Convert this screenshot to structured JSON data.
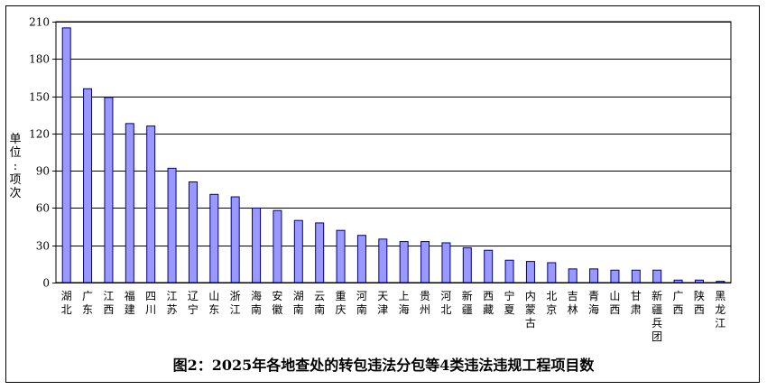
{
  "chart_data": {
    "type": "bar",
    "title": "图2：2025年各地查处的转包违法分包等4类违法违规工程项目数",
    "ylabel": "单位：项次",
    "ylim": [
      0,
      210
    ],
    "yticks": [
      0,
      30,
      60,
      90,
      120,
      150,
      180,
      210
    ],
    "grid": true,
    "categories": [
      "湖北",
      "广东",
      "江西",
      "福建",
      "四川",
      "江苏",
      "辽宁",
      "山东",
      "浙江",
      "海南",
      "安徽",
      "湖南",
      "云南",
      "重庆",
      "河南",
      "天津",
      "上海",
      "贵州",
      "河北",
      "新疆",
      "西藏",
      "宁夏",
      "内蒙古",
      "北京",
      "吉林",
      "青海",
      "山西",
      "甘肃",
      "新疆兵团",
      "广西",
      "陕西",
      "黑龙江"
    ],
    "values": [
      205,
      156,
      149,
      128,
      126,
      92,
      81,
      71,
      69,
      60,
      58,
      50,
      48,
      42,
      38,
      35,
      33,
      33,
      32,
      28,
      26,
      18,
      17,
      16,
      11,
      11,
      10,
      10,
      10,
      2,
      2,
      1
    ],
    "colors": {
      "bar_fill": "#9999ff",
      "bar_stroke": "#000080",
      "grid": "#000000"
    }
  }
}
